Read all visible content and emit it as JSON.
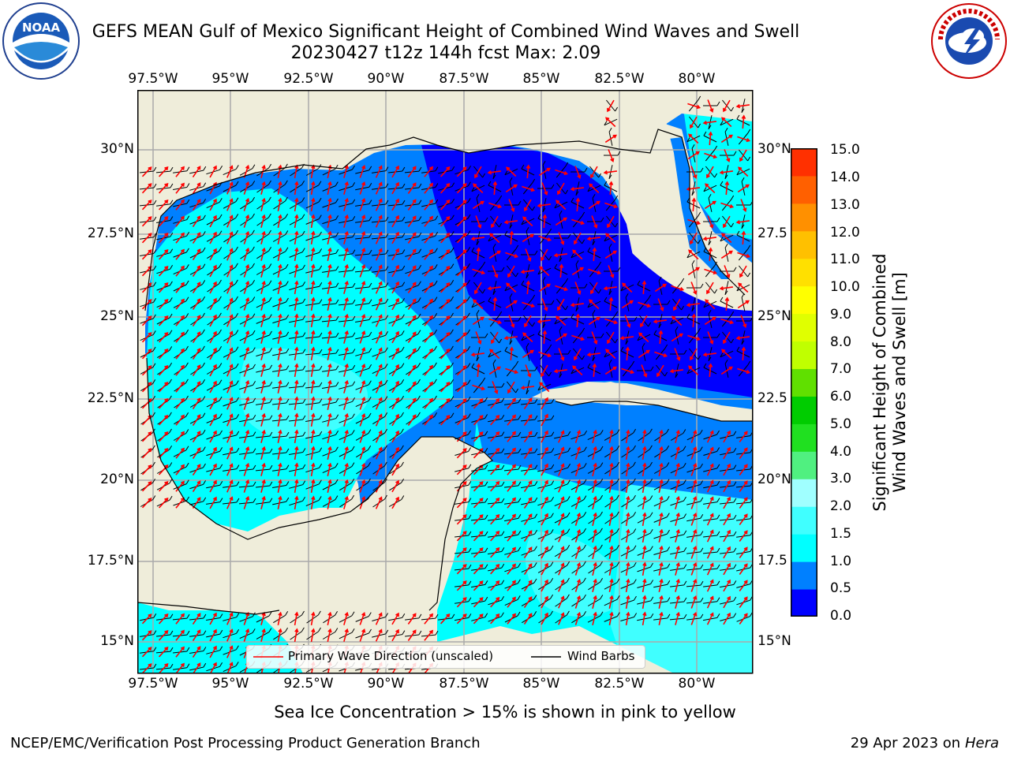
{
  "title": {
    "line1": "GEFS MEAN Gulf of Mexico Significant Height of Combined Wind Waves and Swell",
    "line2": "20230427 t12z 144h fcst   Max: 2.09"
  },
  "logos": {
    "noaa": {
      "text": "NOAA",
      "ring": "NATIONAL OCEANIC AND ATMOSPHERIC ADMINISTRATION · U.S. DEPARTMENT OF COMMERCE"
    },
    "nws": {
      "ring": "NATIONAL WEATHER SERVICE"
    }
  },
  "axes": {
    "lon_ticks": [
      "97.5°W",
      "95°W",
      "92.5°W",
      "90°W",
      "87.5°W",
      "85°W",
      "82.5°W",
      "80°W"
    ],
    "lat_ticks_left": [
      "30°N",
      "27.5°N",
      "25°N",
      "22.5°N",
      "20°N",
      "17.5°N",
      "15°N"
    ],
    "lat_ticks_right": [
      "30°N",
      "27.5",
      "25°N",
      "22.5",
      "20°N",
      "17.5",
      "15°N"
    ]
  },
  "colorbar": {
    "label_line1": "Significant Height of Combined",
    "label_line2": "Wind Waves and Swell [m]",
    "ticks": [
      "15.0",
      "14.0",
      "13.0",
      "12.0",
      "11.0",
      "10.0",
      "9.0",
      "8.0",
      "7.0",
      "6.0",
      "5.0",
      "4.0",
      "3.0",
      "2.0",
      "1.5",
      "1.0",
      "0.5",
      "0.0"
    ],
    "colors_bottom_to_top": [
      "#0000ff",
      "#0080ff",
      "#00ffff",
      "#40ffff",
      "#a0ffff",
      "#50f080",
      "#20e020",
      "#00cc00",
      "#60e000",
      "#c0ff00",
      "#e0ff00",
      "#ffff00",
      "#ffe000",
      "#ffc000",
      "#ff9000",
      "#ff6000",
      "#ff3000"
    ]
  },
  "legend": {
    "wave_label": "Primary Wave Direction (unscaled)",
    "barb_label": "Wind Barbs"
  },
  "colors": {
    "land": "#efedda",
    "level_0_05": "#0000ff",
    "level_05_1": "#0080ff",
    "level_1_15": "#00ffff",
    "level_15_2": "#40ffff",
    "arrow": "#ff0000"
  },
  "footer": {
    "ice_note": "Sea Ice Concentration > 15% is shown in pink to yellow",
    "branch": "NCEP/EMC/Verification Post Processing Product Generation Branch",
    "date": "29 Apr 2023 on ",
    "machine": "Hera"
  }
}
